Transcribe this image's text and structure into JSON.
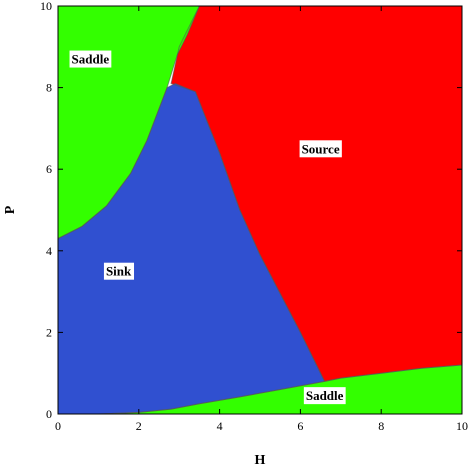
{
  "chart_data": {
    "type": "region-plot",
    "title": "",
    "xlabel": "H",
    "ylabel": "P",
    "xlim": [
      0,
      10
    ],
    "ylim": [
      0,
      10
    ],
    "xticks": [
      "0",
      "2",
      "4",
      "6",
      "8",
      "10"
    ],
    "yticks": [
      "0",
      "2",
      "4",
      "6",
      "8",
      "10"
    ],
    "regions": [
      {
        "name": "Source",
        "color": "#ff0000",
        "label": {
          "text": "Source",
          "x": 6.5,
          "y": 6.5
        },
        "polygon": [
          [
            3.5,
            10
          ],
          [
            10,
            10
          ],
          [
            10,
            1.2
          ],
          [
            9,
            1.12
          ],
          [
            8,
            1.0
          ],
          [
            7,
            0.88
          ],
          [
            6.6,
            0.8
          ],
          [
            6.0,
            2.0
          ],
          [
            5.0,
            3.9
          ],
          [
            4.5,
            5.0
          ],
          [
            4.0,
            6.4
          ],
          [
            3.4,
            7.9
          ],
          [
            2.8,
            8.1
          ],
          [
            3.0,
            9.0
          ],
          [
            3.35,
            9.7
          ]
        ]
      },
      {
        "name": "Sink",
        "color": "#3050d0",
        "label": {
          "text": "Sink",
          "x": 1.5,
          "y": 3.5
        },
        "polygon": [
          [
            0,
            4.3
          ],
          [
            0.6,
            4.6
          ],
          [
            1.2,
            5.1
          ],
          [
            1.8,
            5.9
          ],
          [
            2.2,
            6.7
          ],
          [
            2.7,
            8.0
          ],
          [
            2.9,
            8.1
          ],
          [
            3.4,
            7.9
          ],
          [
            4.0,
            6.4
          ],
          [
            4.5,
            5.0
          ],
          [
            5.0,
            3.9
          ],
          [
            6.0,
            2.0
          ],
          [
            6.6,
            0.8
          ],
          [
            5.5,
            0.6
          ],
          [
            4.5,
            0.42
          ],
          [
            3.5,
            0.25
          ],
          [
            2.8,
            0.12
          ],
          [
            2.0,
            0.04
          ],
          [
            1.0,
            0
          ],
          [
            0,
            0
          ]
        ]
      },
      {
        "name": "Saddle",
        "color": "#33ff00",
        "label": {
          "text": "Saddle",
          "x": 0.8,
          "y": 8.7
        },
        "polygon": [
          [
            0,
            10
          ],
          [
            3.5,
            10
          ],
          [
            3.2,
            9.3
          ],
          [
            2.95,
            8.8
          ],
          [
            2.7,
            8.0
          ],
          [
            2.2,
            6.7
          ],
          [
            1.8,
            5.9
          ],
          [
            1.2,
            5.1
          ],
          [
            0.6,
            4.6
          ],
          [
            0,
            4.3
          ]
        ]
      },
      {
        "name": "Saddle",
        "color": "#33ff00",
        "label": {
          "text": "Saddle",
          "x": 6.6,
          "y": 0.45
        },
        "polygon": [
          [
            0,
            0
          ],
          [
            1.0,
            0
          ],
          [
            2.0,
            0.04
          ],
          [
            2.8,
            0.12
          ],
          [
            3.5,
            0.25
          ],
          [
            4.5,
            0.42
          ],
          [
            5.5,
            0.6
          ],
          [
            6.6,
            0.8
          ],
          [
            7,
            0.88
          ],
          [
            8,
            1.0
          ],
          [
            9,
            1.12
          ],
          [
            10,
            1.2
          ],
          [
            10,
            0
          ],
          [
            0,
            0
          ]
        ]
      }
    ],
    "grid": false,
    "legend": "none"
  }
}
